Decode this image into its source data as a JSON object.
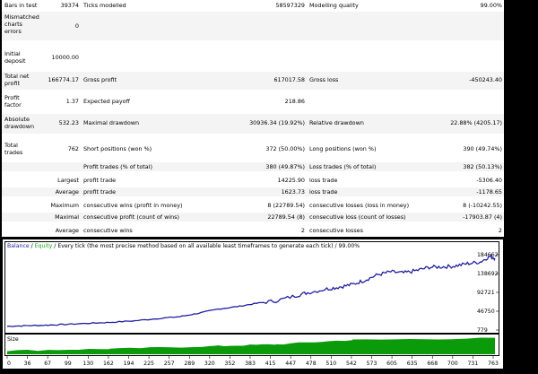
{
  "report": {
    "bars_label": "Bars in test",
    "bars_value": "39374",
    "ticks_label": "Ticks modelled",
    "ticks_value": "58597329",
    "quality_label": "Modelling quality",
    "quality_value": "99.00%",
    "mismatch_label": "Mismatched charts errors",
    "mismatch_value": "0",
    "deposit_label": "Initial deposit",
    "deposit_value": "10000.00",
    "netprofit_label": "Total net profit",
    "netprofit_value": "166774.17",
    "grossprofit_label": "Gross profit",
    "grossprofit_value": "617017.58",
    "grossloss_label": "Gross loss",
    "grossloss_value": "-450243.40",
    "pf_label": "Profit factor",
    "pf_value": "1.37",
    "payoff_label": "Expected payoff",
    "payoff_value": "218.86",
    "absdd_label": "Absolute drawdown",
    "absdd_value": "532.23",
    "maxdd_label": "Maximal drawdown",
    "maxdd_value": "30936.34 (19.92%)",
    "reldd_label": "Relative drawdown",
    "reldd_value": "22.88% (4205.17)",
    "trades_label": "Total trades",
    "trades_value": "762",
    "short_label": "Short positions (won %)",
    "short_value": "372 (50.00%)",
    "long_label": "Long positions (won %)",
    "long_value": "390 (49.74%)",
    "profittr_label": "Profit trades (% of total)",
    "profittr_value": "380 (49.87%)",
    "losstr_label": "Loss trades (% of total)",
    "losstr_value": "382 (50.13%)",
    "largest_label": "Largest",
    "largest_profit_label": "profit trade",
    "largest_profit_value": "14225.90",
    "largest_loss_label": "loss trade",
    "largest_loss_value": "-5306.40",
    "average_label": "Average",
    "average_profit_label": "profit trade",
    "average_profit_value": "1623.73",
    "average_loss_label": "loss trade",
    "average_loss_value": "-1178.65",
    "maximum_label": "Maximum",
    "max_wins_label": "consecutive wins (profit in money)",
    "max_wins_value": "8 (22789.54)",
    "max_losses_label": "consecutive losses (loss in money)",
    "max_losses_value": "8 (-10242.55)",
    "maximal_label": "Maximal",
    "mx_profit_label": "consecutive profit (count of wins)",
    "mx_profit_value": "22789.54 (8)",
    "mx_loss_label": "consecutive loss (count of losses)",
    "mx_loss_value": "-17903.87 (4)",
    "avg2_label": "Average",
    "avg_wins_label": "consecutive wins",
    "avg_wins_value": "2",
    "avg_losses_label": "consecutive losses",
    "avg_losses_value": "2"
  },
  "graph": {
    "legend_balance": "Balance",
    "legend_sep": " / ",
    "legend_equity": "Equity",
    "legend_rest": " / Every tick (the most precise method based on all available least timeframes to generate each tick) / 99.00%",
    "size_label": "Size",
    "balance_color": "#1f1f9f",
    "equity_color": "#1aa81a",
    "size_color": "#0a9a0a"
  },
  "chart_data": {
    "type": "line",
    "title": "",
    "x_ticks": [
      "0",
      "36",
      "67",
      "99",
      "130",
      "162",
      "194",
      "225",
      "257",
      "289",
      "320",
      "352",
      "383",
      "415",
      "447",
      "478",
      "510",
      "542",
      "573",
      "605",
      "635",
      "668",
      "700",
      "731",
      "763"
    ],
    "y_ticks": [
      "184662",
      "138692",
      "92721",
      "46750",
      "779"
    ],
    "ylim": [
      779,
      184662
    ],
    "series": [
      {
        "name": "Balance",
        "x": [
          0,
          30,
          60,
          90,
          130,
          160,
          200,
          240,
          270,
          300,
          330,
          360,
          390,
          420,
          450,
          470,
          500,
          520,
          540,
          560,
          580,
          600,
          620,
          640,
          660,
          680,
          700,
          720,
          740,
          755,
          763
        ],
        "values": [
          10000,
          11500,
          12600,
          14500,
          17500,
          19500,
          23500,
          29500,
          33500,
          42000,
          52000,
          58000,
          66000,
          72000,
          84000,
          92000,
          101000,
          106000,
          112000,
          123000,
          136000,
          143000,
          140000,
          146000,
          154000,
          155000,
          157000,
          163000,
          167000,
          181000,
          176000
        ]
      }
    ],
    "size_series": {
      "name": "Size",
      "note_levels": "low",
      "segments": [
        [
          0,
          0.2
        ],
        [
          160,
          0.3
        ],
        [
          320,
          0.45
        ],
        [
          420,
          0.55
        ],
        [
          540,
          0.8
        ],
        [
          763,
          0.9
        ]
      ]
    }
  }
}
